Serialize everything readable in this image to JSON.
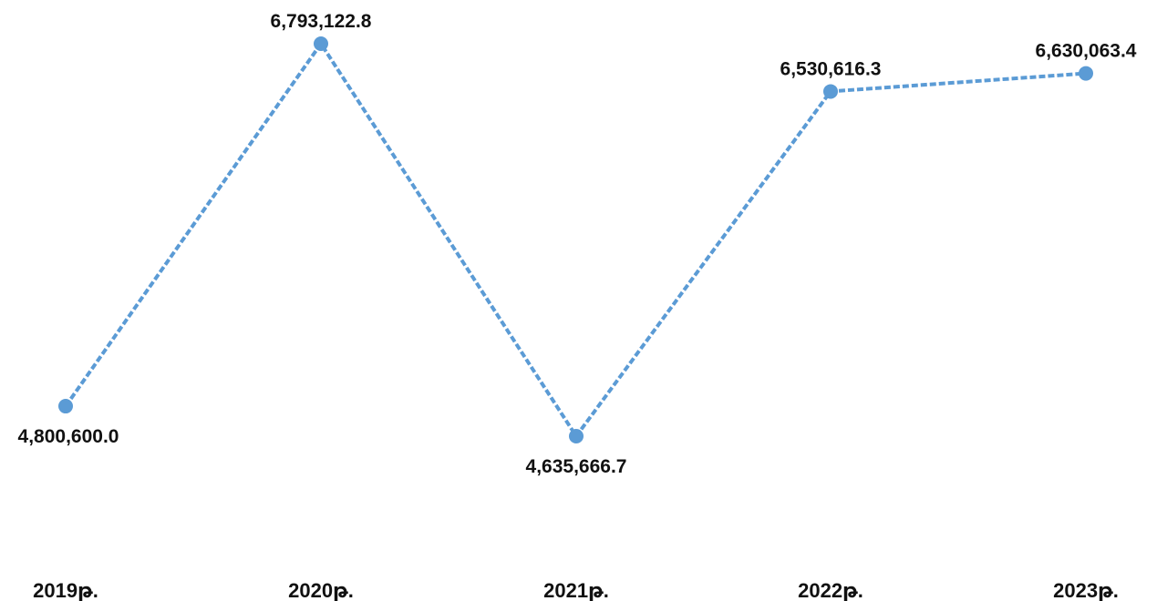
{
  "chart_data": {
    "type": "line",
    "title": "",
    "xlabel": "",
    "ylabel": "",
    "categories": [
      "2019թ.",
      "2020թ.",
      "2021թ.",
      "2022թ.",
      "2023թ."
    ],
    "series": [
      {
        "values": [
          4800600.0,
          6793122.8,
          4635666.7,
          6530616.3,
          6630063.4
        ],
        "data_labels": [
          "4,800,600.0",
          "6,793,122.8",
          "4,635,666.7",
          "6,530,616.3",
          "6,630,063.4"
        ],
        "color": "#5B9BD5",
        "line_style": "dashed",
        "marker": "circle"
      }
    ],
    "grid": false,
    "legend": "none",
    "y_axis_visible": false
  }
}
